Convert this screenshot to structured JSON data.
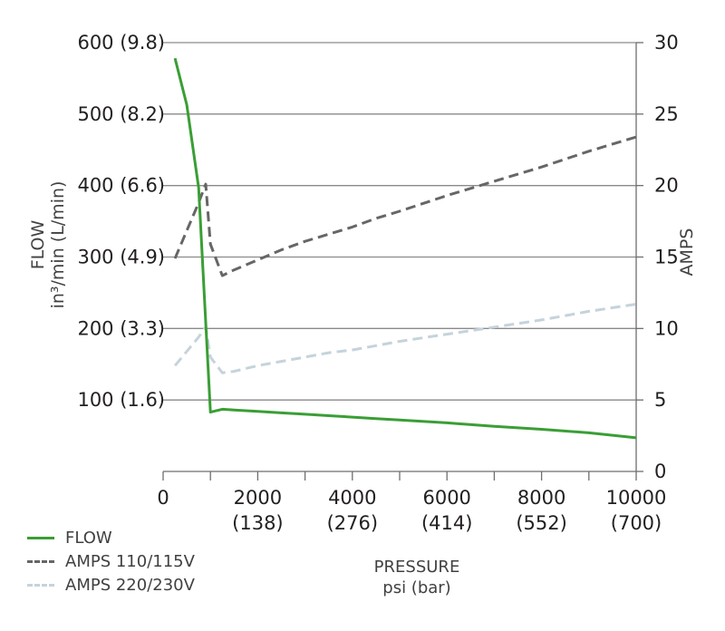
{
  "chart_data": {
    "type": "line",
    "xlabel": "PRESSURE",
    "xlabel_units": "psi (bar)",
    "ylabel_left": "FLOW",
    "ylabel_left_units": "in³/min (L/min)",
    "ylabel_right": "AMPS",
    "xlim": [
      0,
      10000
    ],
    "ylim_left": [
      0,
      600
    ],
    "ylim_right": [
      0,
      30
    ],
    "grid": "horizontal",
    "legend_position": "bottom-left",
    "x_ticks": [
      {
        "value": 0,
        "line1": "0",
        "line2": ""
      },
      {
        "value": 2000,
        "line1": "2000",
        "line2": "(138)"
      },
      {
        "value": 4000,
        "line1": "4000",
        "line2": "(276)"
      },
      {
        "value": 6000,
        "line1": "6000",
        "line2": "(414)"
      },
      {
        "value": 8000,
        "line1": "8000",
        "line2": "(552)"
      },
      {
        "value": 10000,
        "line1": "10000",
        "line2": "(700)"
      }
    ],
    "x_minor_ticks": [
      1000,
      3000,
      5000,
      7000,
      9000
    ],
    "y_left_ticks": [
      {
        "value": 100,
        "label": "100 (1.6)"
      },
      {
        "value": 200,
        "label": "200 (3.3)"
      },
      {
        "value": 300,
        "label": "300 (4.9)"
      },
      {
        "value": 400,
        "label": "400 (6.6)"
      },
      {
        "value": 500,
        "label": "500 (8.2)"
      },
      {
        "value": 600,
        "label": "600 (9.8)"
      }
    ],
    "y_right_ticks": [
      {
        "value": 0,
        "label": "0"
      },
      {
        "value": 5,
        "label": "5"
      },
      {
        "value": 10,
        "label": "10"
      },
      {
        "value": 15,
        "label": "15"
      },
      {
        "value": 20,
        "label": "20"
      },
      {
        "value": 25,
        "label": "25"
      },
      {
        "value": 30,
        "label": "30"
      }
    ],
    "series": [
      {
        "name": "FLOW",
        "axis": "left",
        "color": "#3a9e35",
        "dash": "solid",
        "x": [
          250,
          500,
          750,
          1000,
          1250,
          1500,
          2000,
          2500,
          3000,
          3500,
          4000,
          4500,
          5000,
          6000,
          7000,
          8000,
          9000,
          10000
        ],
        "y": [
          578,
          513,
          397,
          83,
          87,
          86,
          84,
          82,
          80,
          78,
          76,
          74,
          72,
          68,
          63,
          59,
          54,
          47
        ]
      },
      {
        "name": "AMPS 110/115V",
        "axis": "right",
        "color": "#666666",
        "dash": "dashed",
        "x": [
          250,
          750,
          900,
          1000,
          1250,
          1500,
          2000,
          2500,
          3000,
          3500,
          4000,
          4500,
          5000,
          6000,
          7000,
          8000,
          9000,
          10000
        ],
        "y": [
          14.9,
          18.8,
          20.1,
          15.9,
          13.7,
          14.1,
          14.8,
          15.5,
          16.1,
          16.6,
          17.1,
          17.7,
          18.2,
          19.3,
          20.3,
          21.3,
          22.4,
          23.4
        ]
      },
      {
        "name": "AMPS 220/230V",
        "axis": "right",
        "color": "#c5d3db",
        "dash": "dashed",
        "x": [
          250,
          750,
          900,
          1000,
          1250,
          1500,
          2000,
          2500,
          3000,
          3500,
          4000,
          4500,
          5000,
          6000,
          7000,
          8000,
          9000,
          10000
        ],
        "y": [
          7.4,
          9.4,
          10.1,
          8.0,
          6.9,
          7.0,
          7.4,
          7.7,
          8.0,
          8.3,
          8.5,
          8.8,
          9.1,
          9.6,
          10.1,
          10.6,
          11.2,
          11.7
        ]
      }
    ]
  },
  "legend": [
    {
      "label": "FLOW",
      "color": "#3a9e35",
      "dash": "solid"
    },
    {
      "label": "AMPS 110/115V",
      "color": "#666666",
      "dash": "dashed"
    },
    {
      "label": "AMPS 220/230V",
      "color": "#c5d3db",
      "dash": "dashed"
    }
  ]
}
